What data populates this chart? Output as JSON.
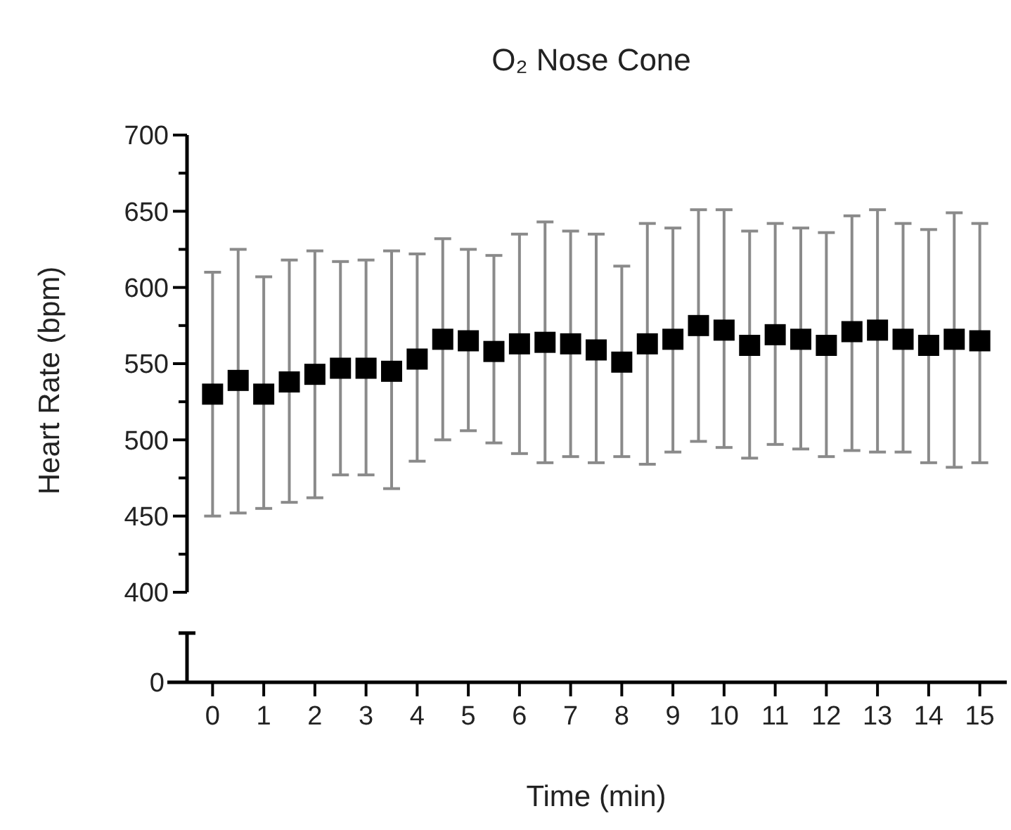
{
  "chart_data": {
    "type": "scatter",
    "title": "O₂ Nose Cone",
    "ylabel": "Heart Rate (bpm)",
    "xlabel": "Time (min)",
    "marker": "square",
    "annotations": [
      "0"
    ],
    "x": [
      0,
      0.5,
      1,
      1.5,
      2,
      2.5,
      3,
      3.5,
      4,
      4.5,
      5,
      5.5,
      6,
      6.5,
      7,
      7.5,
      8,
      8.5,
      9,
      9.5,
      10,
      10.5,
      11,
      11.5,
      12,
      12.5,
      13,
      13.5,
      14,
      14.5,
      15
    ],
    "xlim": [
      -0.5,
      15.5
    ],
    "xticks": [
      0,
      1,
      2,
      3,
      4,
      5,
      6,
      7,
      8,
      9,
      10,
      11,
      12,
      13,
      14,
      15
    ],
    "ylim": [
      400,
      700
    ],
    "yticks": [
      400,
      {
        "value": 425,
        "label": null
      },
      450,
      {
        "value": 475,
        "label": null
      },
      500,
      {
        "value": 525,
        "label": null
      },
      550,
      {
        "value": 575,
        "label": null
      },
      600,
      {
        "value": 625,
        "label": null
      },
      650,
      {
        "value": 675,
        "label": null
      },
      700
    ],
    "series": [
      {
        "color": "#000000",
        "values": [
          530,
          539,
          530,
          538,
          543,
          547,
          547,
          545,
          553,
          566,
          565,
          558,
          563,
          564,
          563,
          559,
          551,
          563,
          566,
          575,
          572,
          562,
          569,
          566,
          562,
          571,
          572,
          566,
          562,
          566,
          565
        ],
        "errors": [
          [
            450,
            610
          ],
          [
            452,
            625
          ],
          [
            455,
            607
          ],
          [
            459,
            618
          ],
          [
            462,
            624
          ],
          [
            477,
            617
          ],
          [
            477,
            618
          ],
          [
            468,
            624
          ],
          [
            486,
            622
          ],
          [
            500,
            632
          ],
          [
            506,
            625
          ],
          [
            498,
            621
          ],
          [
            491,
            635
          ],
          [
            485,
            643
          ],
          [
            489,
            637
          ],
          [
            485,
            635
          ],
          [
            489,
            614
          ],
          [
            484,
            642
          ],
          [
            492,
            639
          ],
          [
            499,
            651
          ],
          [
            495,
            651
          ],
          [
            488,
            637
          ],
          [
            497,
            642
          ],
          [
            494,
            639
          ],
          [
            489,
            636
          ],
          [
            493,
            647
          ],
          [
            492,
            651
          ],
          [
            492,
            642
          ],
          [
            485,
            638
          ],
          [
            482,
            649
          ],
          [
            485,
            642
          ]
        ]
      }
    ]
  }
}
